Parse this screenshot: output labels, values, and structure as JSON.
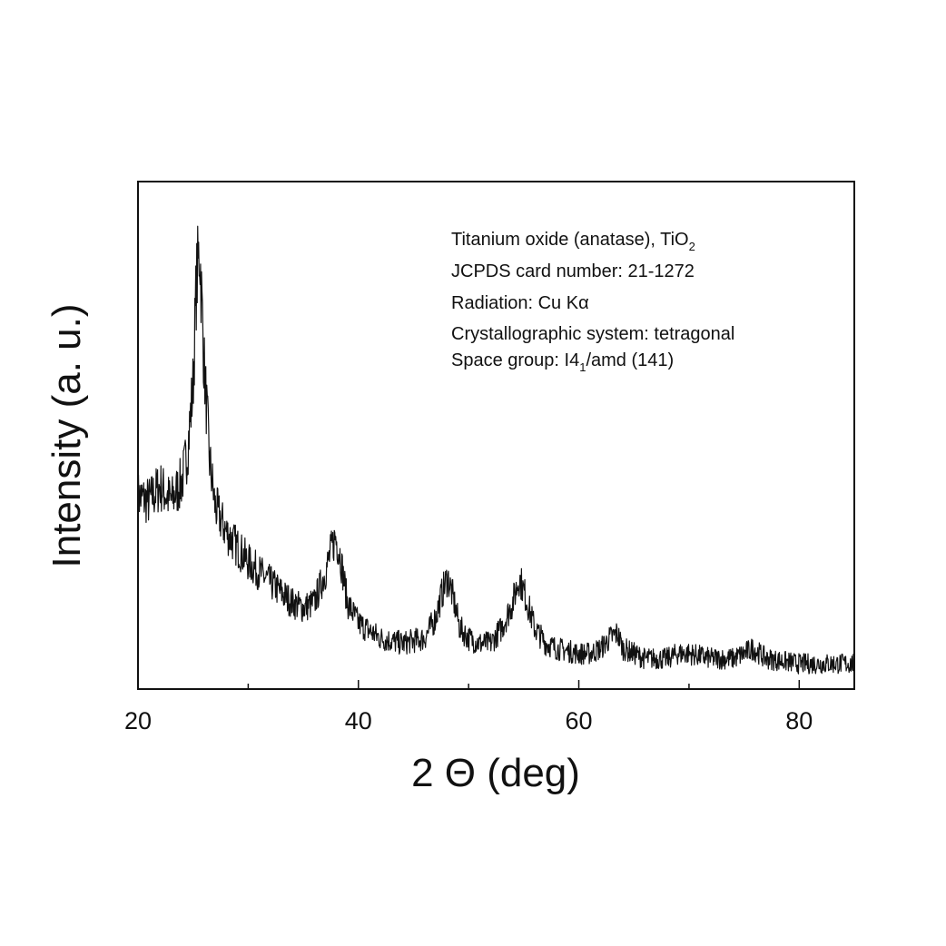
{
  "chart_data": {
    "type": "line",
    "xlabel": "2 Θ (deg)",
    "ylabel": "Intensity (a. u.)",
    "xlim": [
      20,
      85
    ],
    "ylim": [
      0,
      100
    ],
    "x_ticks": [
      20,
      40,
      60,
      80
    ],
    "x_minor_ticks": [
      30,
      50,
      70
    ],
    "y_ticks_labeled": false,
    "grid": false,
    "legend": "none",
    "line_color": "#111111",
    "annotation": {
      "position": "top-right",
      "lines": [
        {
          "text": "Titanium oxide (anatase), TiO",
          "sub": "2",
          "after": ""
        },
        {
          "text": "JCPDS card number: 21-1272",
          "sub": "",
          "after": ""
        },
        {
          "text": "Radiation: Cu Kα",
          "sub": "",
          "after": ""
        },
        {
          "text": "Crystallographic system: tetragonal",
          "sub": "",
          "after": ""
        },
        {
          "text": "Space group: I4",
          "sub": "1",
          "after": "/amd (141)"
        }
      ]
    },
    "series": [
      {
        "x": [
          20,
          21,
          22,
          23,
          24,
          24.5,
          25,
          25.3,
          25.6,
          26,
          26.5,
          27,
          28,
          29,
          30,
          32,
          34,
          35,
          36,
          37,
          37.5,
          37.9,
          38.3,
          39,
          40,
          42,
          44,
          46,
          47,
          47.6,
          48.1,
          48.6,
          49.2,
          50,
          51,
          52,
          53,
          54,
          54.6,
          55.2,
          56,
          57,
          58,
          60,
          61,
          62,
          62.8,
          63.5,
          64,
          66,
          68,
          69,
          70,
          72,
          74,
          75,
          75.8,
          77,
          80,
          82,
          85
        ],
        "y": [
          38,
          37,
          40,
          37,
          41,
          47,
          60,
          80,
          87,
          64,
          45,
          36,
          31,
          28,
          25,
          21,
          17,
          16,
          17,
          23,
          27,
          30,
          27,
          17,
          13,
          10,
          9,
          10,
          14,
          19,
          22,
          18,
          12,
          10,
          9,
          9,
          12,
          17,
          22,
          18,
          12,
          9,
          8,
          7,
          7,
          8,
          10,
          11,
          8,
          6,
          6,
          7,
          7,
          6,
          6,
          7,
          8,
          6,
          5,
          5,
          5
        ]
      }
    ]
  }
}
